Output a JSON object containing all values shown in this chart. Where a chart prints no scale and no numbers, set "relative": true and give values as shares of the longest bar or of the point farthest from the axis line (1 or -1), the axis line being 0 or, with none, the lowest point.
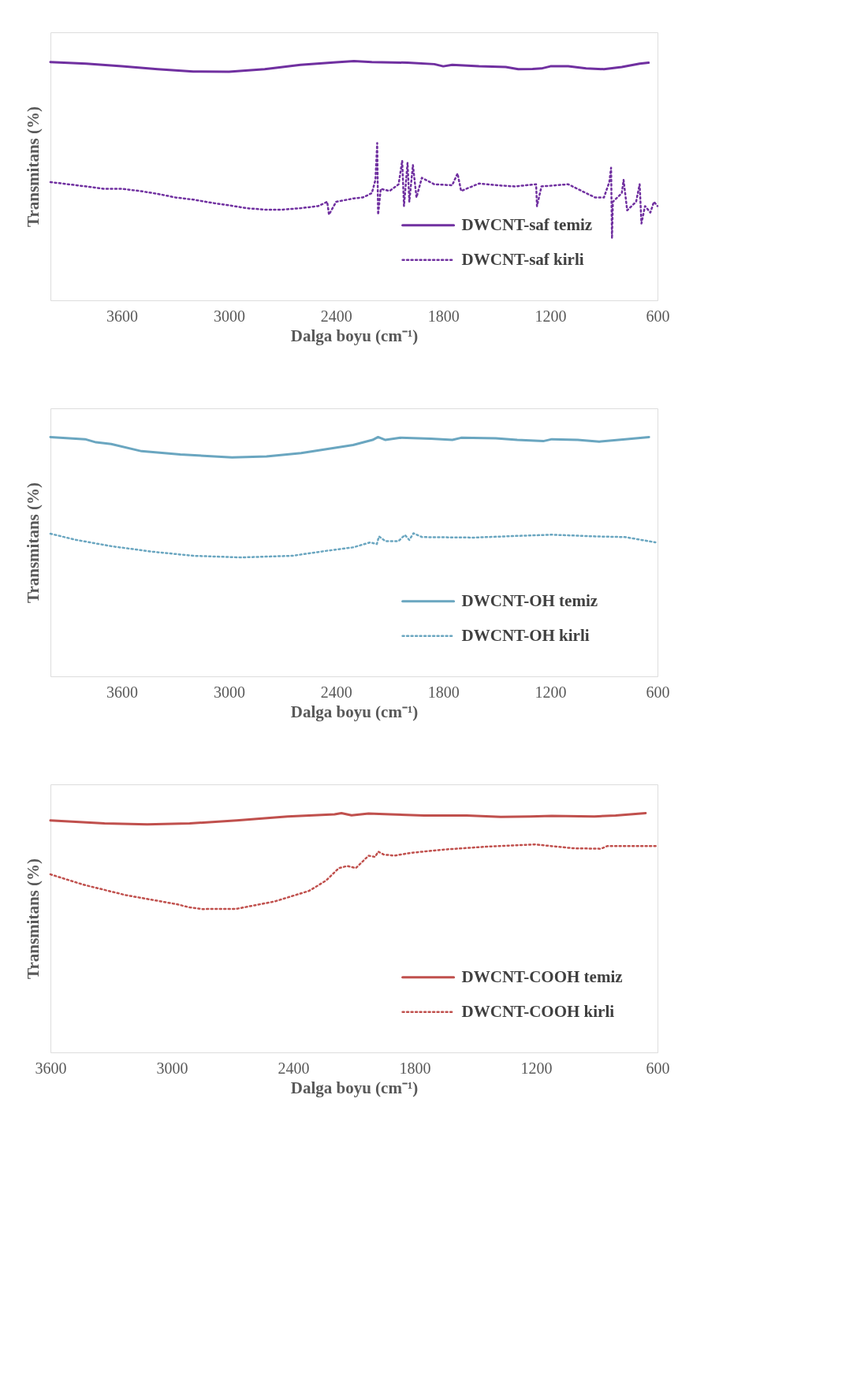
{
  "chart_data": [
    {
      "type": "line",
      "relative": true,
      "xlabel": "Dalga boyu (cm⁻¹)",
      "ylabel": "Transmitans (%)",
      "xlim": [
        4000,
        600
      ],
      "xticks": [
        3600,
        3000,
        2400,
        1800,
        1200,
        600
      ],
      "grid": false,
      "legend": "bottom right",
      "marker": "none",
      "series": [
        {
          "name": "DWCNT-saf temiz",
          "color": "#7030a0",
          "line_style": "solid",
          "x": [
            4000,
            3800,
            3600,
            3400,
            3200,
            3000,
            2800,
            2600,
            2400,
            2300,
            2200,
            2000,
            1850,
            1800,
            1750,
            1600,
            1450,
            1380,
            1300,
            1250,
            1200,
            1100,
            1000,
            900,
            800,
            700,
            650
          ],
          "values": [
            0.996,
            0.989,
            0.978,
            0.966,
            0.956,
            0.955,
            0.966,
            0.984,
            0.995,
            1.0,
            0.996,
            0.993,
            0.987,
            0.978,
            0.984,
            0.978,
            0.975,
            0.966,
            0.967,
            0.969,
            0.978,
            0.978,
            0.969,
            0.966,
            0.975,
            0.989,
            0.993
          ]
        },
        {
          "name": "DWCNT-saf kirli",
          "color": "#7030a0",
          "line_style": "dotted",
          "x": [
            4000,
            3900,
            3800,
            3700,
            3600,
            3500,
            3400,
            3300,
            3200,
            3100,
            3000,
            2900,
            2800,
            2700,
            2600,
            2500,
            2450,
            2440,
            2400,
            2300,
            2250,
            2200,
            2180,
            2170,
            2165,
            2150,
            2100,
            2050,
            2030,
            2020,
            2000,
            1990,
            1970,
            1950,
            1920,
            1850,
            1750,
            1720,
            1700,
            1600,
            1500,
            1400,
            1280,
            1275,
            1250,
            1100,
            1000,
            950,
            900,
            870,
            860,
            855,
            850,
            800,
            790,
            770,
            720,
            700,
            690,
            670,
            640,
            620,
            600
          ],
          "values": [
            0.494,
            0.485,
            0.476,
            0.466,
            0.466,
            0.457,
            0.445,
            0.43,
            0.421,
            0.408,
            0.397,
            0.385,
            0.379,
            0.379,
            0.385,
            0.394,
            0.412,
            0.358,
            0.412,
            0.426,
            0.43,
            0.448,
            0.503,
            0.657,
            0.358,
            0.466,
            0.457,
            0.485,
            0.584,
            0.394,
            0.575,
            0.412,
            0.566,
            0.43,
            0.512,
            0.485,
            0.481,
            0.53,
            0.457,
            0.488,
            0.481,
            0.476,
            0.485,
            0.394,
            0.476,
            0.485,
            0.448,
            0.43,
            0.43,
            0.494,
            0.554,
            0.258,
            0.412,
            0.448,
            0.503,
            0.376,
            0.412,
            0.485,
            0.321,
            0.394,
            0.367,
            0.412,
            0.394
          ]
        }
      ]
    },
    {
      "type": "line",
      "relative": true,
      "xlabel": "Dalga boyu (cm⁻¹)",
      "ylabel": "Transmitans (%)",
      "xlim": [
        4000,
        600
      ],
      "xticks": [
        3600,
        3000,
        2400,
        1800,
        1200,
        600
      ],
      "grid": false,
      "legend": "bottom right",
      "marker": "none",
      "series": [
        {
          "name": "DWCNT-OH temiz",
          "color": "#6aa6c0",
          "line_style": "solid",
          "x": [
            4000,
            3806,
            3745,
            3660,
            3490,
            3273,
            2983,
            2790,
            2596,
            2305,
            2196,
            2165,
            2124,
            2040,
            1870,
            1749,
            1700,
            1506,
            1386,
            1240,
            1192,
            1047,
            926,
            781,
            648
          ],
          "values": [
            1.0,
            0.991,
            0.978,
            0.971,
            0.941,
            0.927,
            0.915,
            0.919,
            0.933,
            0.967,
            0.988,
            1.0,
            0.988,
            0.997,
            0.993,
            0.988,
            0.997,
            0.995,
            0.988,
            0.983,
            0.991,
            0.988,
            0.981,
            0.991,
            1.0
          ]
        },
        {
          "name": "DWCNT-OH kirli",
          "color": "#6aa6c0",
          "line_style": "dotted",
          "x": [
            4000,
            3854,
            3660,
            3443,
            3201,
            2935,
            2644,
            2451,
            2305,
            2209,
            2172,
            2160,
            2124,
            2051,
            2015,
            1990,
            1967,
            1918,
            1628,
            1386,
            1192,
            950,
            781,
            612
          ],
          "values": [
            0.596,
            0.57,
            0.544,
            0.522,
            0.504,
            0.497,
            0.504,
            0.525,
            0.539,
            0.56,
            0.553,
            0.585,
            0.565,
            0.565,
            0.591,
            0.57,
            0.598,
            0.582,
            0.58,
            0.587,
            0.592,
            0.585,
            0.582,
            0.56
          ]
        }
      ]
    },
    {
      "type": "line",
      "relative": true,
      "xlabel": "Dalga boyu (cm⁻¹)",
      "ylabel": "Transmitans (%)",
      "xlim": [
        3600,
        600
      ],
      "xticks": [
        3600,
        3000,
        2400,
        1800,
        1200,
        600
      ],
      "grid": false,
      "legend": "bottom right",
      "marker": "none",
      "series": [
        {
          "name": "DWCNT-COOH temiz",
          "color": "#c0504d",
          "line_style": "solid",
          "x": [
            3600,
            3333,
            3122,
            2912,
            2680,
            2428,
            2196,
            2162,
            2112,
            2028,
            1922,
            1754,
            1543,
            1375,
            1228,
            1123,
            912,
            807,
            659
          ],
          "values": [
            0.969,
            0.957,
            0.953,
            0.957,
            0.969,
            0.986,
            0.995,
            1.0,
            0.991,
            0.998,
            0.995,
            0.99,
            0.99,
            0.984,
            0.986,
            0.988,
            0.986,
            0.99,
            1.0
          ]
        },
        {
          "name": "DWCNT-COOH kirli",
          "color": "#c0504d",
          "line_style": "dotted",
          "x": [
            3600,
            3438,
            3227,
            2975,
            2912,
            2849,
            2680,
            2491,
            2322,
            2238,
            2175,
            2133,
            2091,
            2028,
            1996,
            1980,
            1954,
            1902,
            1817,
            1649,
            1438,
            1206,
            1017,
            880,
            849,
            600
          ],
          "values": [
            0.744,
            0.701,
            0.657,
            0.619,
            0.606,
            0.599,
            0.6,
            0.631,
            0.675,
            0.718,
            0.77,
            0.779,
            0.77,
            0.822,
            0.817,
            0.839,
            0.827,
            0.822,
            0.834,
            0.848,
            0.86,
            0.869,
            0.853,
            0.851,
            0.862,
            0.862
          ]
        }
      ]
    }
  ]
}
